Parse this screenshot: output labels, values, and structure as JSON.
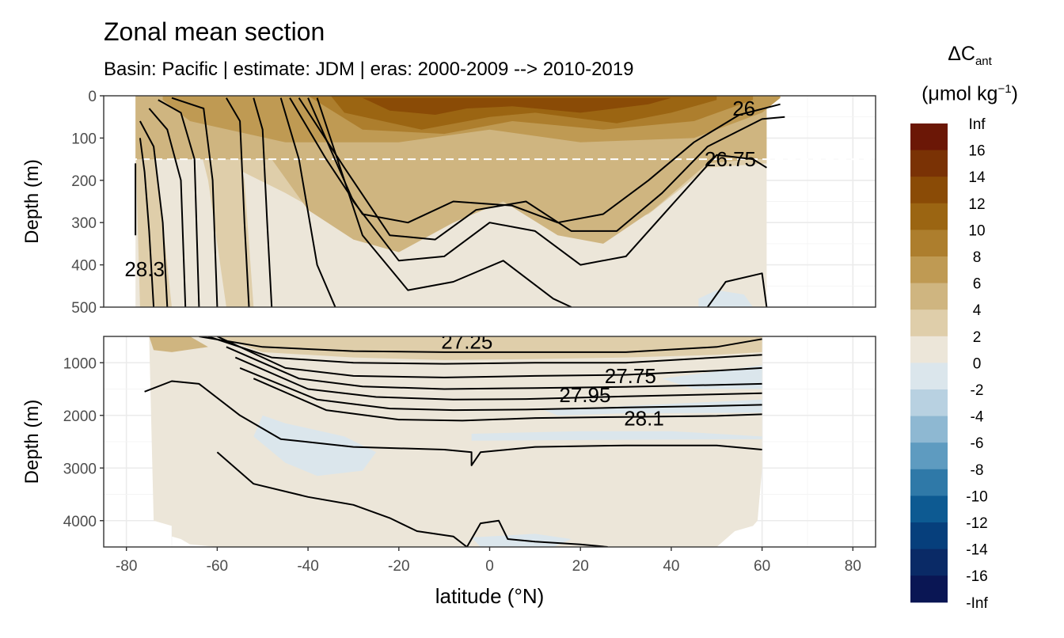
{
  "title": "Zonal mean section",
  "subtitle": "Basin: Pacific | estimate: JDM  | eras: 2000-2009 --> 2010-2019",
  "legend": {
    "title_symbol": "ΔC",
    "title_sub": "ant",
    "unit_open": "(μmol kg",
    "unit_sup": "−1",
    "unit_close": ")",
    "labels": [
      "Inf",
      "16",
      "14",
      "12",
      "10",
      "8",
      "6",
      "4",
      "2",
      "0",
      "-2",
      "-4",
      "-6",
      "-8",
      "-10",
      "-12",
      "-14",
      "-16",
      "-Inf"
    ],
    "colors": [
      "#6b1706",
      "#7a3205",
      "#8a4b06",
      "#9b6512",
      "#ad7e2d",
      "#bf9a53",
      "#cfb580",
      "#dfceaa",
      "#ece6d9",
      "#dbe6ec",
      "#b8d1e1",
      "#8eb8d2",
      "#5e9bc0",
      "#2f79a8",
      "#0d5a92",
      "#063f7c",
      "#0a2a66",
      "#0a1654"
    ]
  },
  "chart_data": {
    "type": "contour-section",
    "xlabel": "latitude (°N)",
    "ylabel": "Depth (m)",
    "xlim": [
      -85,
      85
    ],
    "x_ticks": [
      -80,
      -60,
      -40,
      -20,
      0,
      20,
      40,
      60,
      80
    ],
    "x_tick_labels": [
      "-80",
      "-60",
      "-40",
      "-20",
      "0",
      "20",
      "40",
      "60",
      "80"
    ],
    "reference_line_depth": 150,
    "panels": [
      {
        "name": "upper",
        "ylim": [
          500,
          0
        ],
        "y_ticks": [
          0,
          100,
          200,
          300,
          400,
          500
        ],
        "y_tick_labels": [
          "0",
          "100",
          "200",
          "300",
          "400",
          "500"
        ],
        "density_isolines": [
          {
            "depths": [
              [
                -78,
                160
              ],
              [
                -78,
                330
              ]
            ]
          },
          {
            "depths": [
              [
                -77,
                100
              ],
              [
                -76,
                180
              ],
              [
                -75,
                320
              ],
              [
                -74,
                500
              ]
            ]
          },
          {
            "depths": [
              [
                -77,
                60
              ],
              [
                -74,
                120
              ],
              [
                -72,
                300
              ],
              [
                -71,
                500
              ]
            ]
          },
          {
            "depths": [
              [
                -75,
                30
              ],
              [
                -71,
                80
              ],
              [
                -68,
                200
              ],
              [
                -67,
                500
              ]
            ]
          },
          {
            "depths": [
              [
                -73,
                10
              ],
              [
                -68,
                40
              ],
              [
                -65,
                150
              ],
              [
                -64,
                500
              ]
            ]
          },
          {
            "depths": [
              [
                -70,
                5
              ],
              [
                -63,
                30
              ],
              [
                -61,
                200
              ],
              [
                -60,
                500
              ]
            ]
          },
          {
            "depths": [
              [
                -58,
                5
              ],
              [
                -55,
                60
              ],
              [
                -54,
                300
              ],
              [
                -53,
                500
              ]
            ]
          },
          {
            "depths": [
              [
                -52,
                5
              ],
              [
                -50,
                80
              ],
              [
                -49,
                300
              ],
              [
                -48,
                500
              ]
            ]
          },
          {
            "depths": [
              [
                -46,
                5
              ],
              [
                -42,
                150
              ],
              [
                -38,
                400
              ],
              [
                -34,
                500
              ]
            ]
          },
          {
            "depths": [
              [
                -44,
                5
              ],
              [
                -36,
                150
              ],
              [
                -28,
                280
              ],
              [
                -18,
                300
              ],
              [
                -8,
                250
              ],
              [
                5,
                260
              ],
              [
                15,
                300
              ],
              [
                25,
                280
              ],
              [
                35,
                200
              ],
              [
                45,
                110
              ],
              [
                55,
                45
              ],
              [
                64,
                20
              ]
            ]
          },
          {
            "depths": [
              [
                -42,
                5
              ],
              [
                -32,
                170
              ],
              [
                -22,
                330
              ],
              [
                -12,
                340
              ],
              [
                -3,
                270
              ],
              [
                8,
                250
              ],
              [
                18,
                320
              ],
              [
                28,
                320
              ],
              [
                38,
                230
              ],
              [
                48,
                120
              ],
              [
                60,
                55
              ],
              [
                65,
                50
              ]
            ]
          },
          {
            "depths": [
              [
                -40,
                5
              ],
              [
                -30,
                250
              ],
              [
                -20,
                390
              ],
              [
                -10,
                380
              ],
              [
                0,
                300
              ],
              [
                10,
                320
              ],
              [
                20,
                400
              ],
              [
                30,
                380
              ],
              [
                40,
                260
              ],
              [
                50,
                140
              ],
              [
                58,
                150
              ],
              [
                61,
                170
              ]
            ]
          },
          {
            "depths": [
              [
                -38,
                5
              ],
              [
                -28,
                330
              ],
              [
                -18,
                460
              ],
              [
                -8,
                440
              ],
              [
                3,
                390
              ],
              [
                14,
                480
              ],
              [
                18,
                500
              ]
            ]
          },
          {
            "depths": [
              [
                48,
                500
              ],
              [
                52,
                440
              ],
              [
                60,
                420
              ],
              [
                61,
                500
              ]
            ]
          }
        ],
        "isoline_labels": [
          {
            "text": "26",
            "lat": 56,
            "depth": 30
          },
          {
            "text": "26.75",
            "lat": 53,
            "depth": 150
          },
          {
            "text": "28.3",
            "lat": -76,
            "depth": 410
          }
        ]
      },
      {
        "name": "lower",
        "ylim": [
          4500,
          500
        ],
        "y_ticks": [
          1000,
          2000,
          3000,
          4000
        ],
        "y_tick_labels": [
          "1000",
          "2000",
          "3000",
          "4000"
        ],
        "density_isolines": [
          {
            "depths": [
              [
                -64,
                500
              ],
              [
                -50,
                700
              ],
              [
                -30,
                780
              ],
              [
                -10,
                800
              ],
              [
                10,
                800
              ],
              [
                30,
                800
              ],
              [
                50,
                700
              ],
              [
                60,
                550
              ]
            ]
          },
          {
            "depths": [
              [
                -62,
                500
              ],
              [
                -48,
                900
              ],
              [
                -30,
                1000
              ],
              [
                -10,
                1020
              ],
              [
                10,
                1000
              ],
              [
                30,
                1000
              ],
              [
                50,
                900
              ],
              [
                60,
                850
              ]
            ]
          },
          {
            "depths": [
              [
                -60,
                500
              ],
              [
                -45,
                1100
              ],
              [
                -30,
                1250
              ],
              [
                -10,
                1280
              ],
              [
                10,
                1250
              ],
              [
                30,
                1230
              ],
              [
                50,
                1150
              ],
              [
                60,
                1100
              ]
            ]
          },
          {
            "depths": [
              [
                -58,
                700
              ],
              [
                -42,
                1300
              ],
              [
                -28,
                1450
              ],
              [
                -10,
                1500
              ],
              [
                10,
                1480
              ],
              [
                30,
                1460
              ],
              [
                50,
                1420
              ],
              [
                60,
                1400
              ]
            ]
          },
          {
            "depths": [
              [
                -56,
                900
              ],
              [
                -40,
                1500
              ],
              [
                -25,
                1650
              ],
              [
                -8,
                1700
              ],
              [
                8,
                1690
              ],
              [
                30,
                1640
              ],
              [
                50,
                1600
              ],
              [
                60,
                1580
              ]
            ]
          },
          {
            "depths": [
              [
                -55,
                1100
              ],
              [
                -38,
                1700
              ],
              [
                -22,
                1870
              ],
              [
                -8,
                1900
              ],
              [
                8,
                1890
              ],
              [
                30,
                1850
              ],
              [
                50,
                1820
              ],
              [
                60,
                1800
              ]
            ]
          },
          {
            "depths": [
              [
                -52,
                1300
              ],
              [
                -36,
                1900
              ],
              [
                -20,
                2080
              ],
              [
                -6,
                2100
              ],
              [
                10,
                2050
              ],
              [
                30,
                2030
              ],
              [
                50,
                2010
              ],
              [
                60,
                1980
              ]
            ]
          },
          {
            "depths": [
              [
                -76,
                1550
              ],
              [
                -70,
                1350
              ],
              [
                -64,
                1400
              ],
              [
                -55,
                2000
              ],
              [
                -46,
                2450
              ],
              [
                -30,
                2600
              ],
              [
                -10,
                2650
              ],
              [
                -4,
                2700
              ],
              [
                -4,
                2950
              ],
              [
                -2,
                2700
              ],
              [
                10,
                2600
              ],
              [
                30,
                2570
              ],
              [
                50,
                2570
              ],
              [
                60,
                2650
              ]
            ]
          },
          {
            "depths": [
              [
                -60,
                2700
              ],
              [
                -52,
                3300
              ],
              [
                -40,
                3550
              ],
              [
                -30,
                3700
              ],
              [
                -22,
                3950
              ],
              [
                -16,
                4200
              ],
              [
                -8,
                4300
              ],
              [
                -5,
                4500
              ],
              [
                -2,
                4050
              ],
              [
                2,
                4000
              ],
              [
                4,
                4350
              ],
              [
                10,
                4400
              ],
              [
                20,
                4450
              ],
              [
                26,
                4500
              ]
            ]
          }
        ],
        "isoline_labels": [
          {
            "text": "27.25",
            "lat": -5,
            "depth": 600
          },
          {
            "text": "27.75",
            "lat": 31,
            "depth": 1250
          },
          {
            "text": "27.95",
            "lat": 21,
            "depth": 1610
          },
          {
            "text": "28.1",
            "lat": 34,
            "depth": 2060
          }
        ]
      }
    ],
    "delta_cant_fill": {
      "upper_mixed_layer": {
        "lat_range": [
          -66,
          61
        ],
        "depth_range": [
          0,
          150
        ],
        "max": 12
      },
      "deep": {
        "typical": 1,
        "range": [
          -2,
          4
        ]
      }
    }
  }
}
